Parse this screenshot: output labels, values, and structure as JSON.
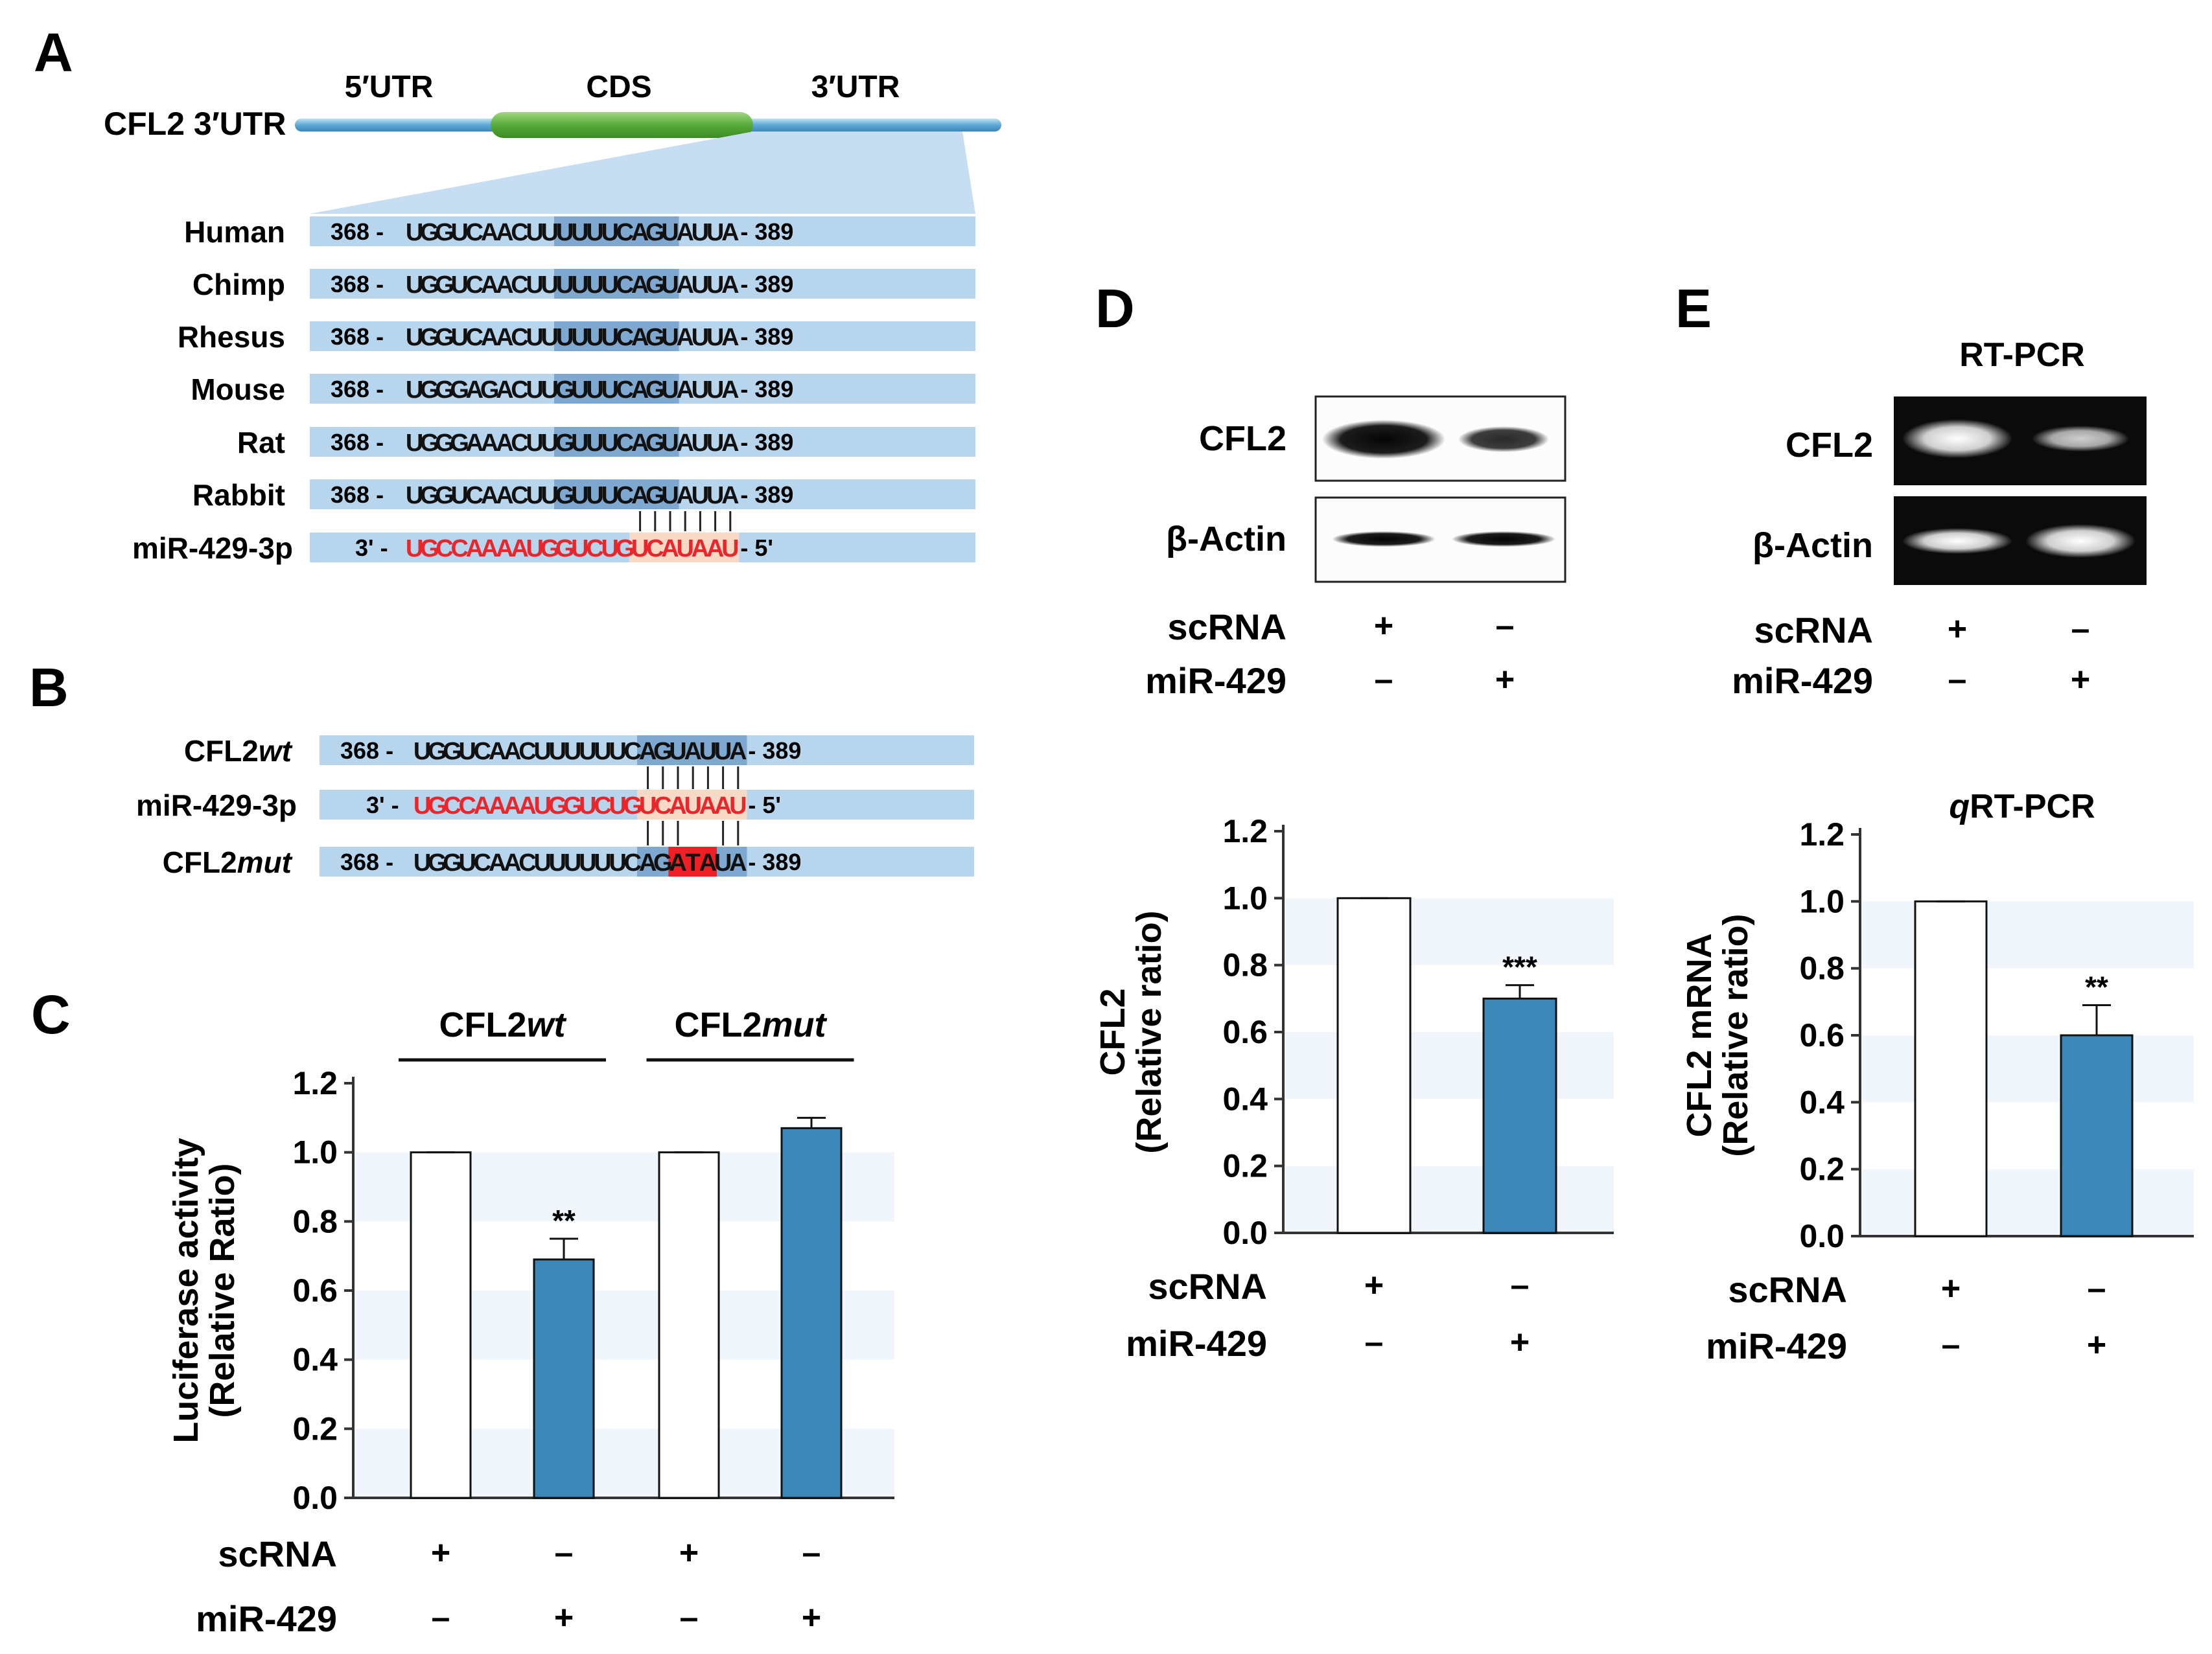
{
  "panels": {
    "A": {
      "letter": "A",
      "gene_label": "CFL2 3′UTR",
      "regions": [
        "5′UTR",
        "CDS",
        "3′UTR"
      ],
      "seed_cols": [
        10,
        17
      ],
      "alignments": [
        {
          "label": "Human",
          "start": "368",
          "seq": "UGGUCAACUUUUUUCAGUAUUA",
          "end": "389"
        },
        {
          "label": "Chimp",
          "start": "368",
          "seq": "UGGUCAACUUUUUUCAGUAUUA",
          "end": "389"
        },
        {
          "label": "Rhesus",
          "start": "368",
          "seq": "UGGUCAACUUUUUUCAGUAUUA",
          "end": "389"
        },
        {
          "label": "Mouse",
          "start": "368",
          "seq": "UGGGAGACUUGUUUCAGUAUUA",
          "end": "389"
        },
        {
          "label": "Rat",
          "start": "368",
          "seq": "UGGGAAACUUGUUUCAGUAUUA",
          "end": "389"
        },
        {
          "label": "Rabbit",
          "start": "368",
          "seq": "UGGUCAACUUGUUUCAGUAUUA",
          "end": "389"
        }
      ],
      "mirna": {
        "label": "miR-429-3p",
        "start": "3'",
        "seq": "UGCCAAAAUGGUCUGUCAUAAU",
        "end": "5'"
      },
      "pair_cols": [
        15,
        16,
        17,
        18,
        19,
        20,
        21
      ]
    },
    "B": {
      "letter": "B",
      "wt": {
        "label_main": "CFL2",
        "label_italic": "wt",
        "start": "368",
        "seq": "UGGUCAACUUUUUUCAGUAUUA",
        "end": "389"
      },
      "mirna": {
        "label": "miR-429-3p",
        "start": "3'",
        "seq": "UGCCAAAAUGGUCUGUCAUAAU",
        "end": "5'"
      },
      "mut": {
        "label_main": "CFL2",
        "label_italic": "mut",
        "start": "368",
        "seq": "UGGUCAACUUUUUUCAGATAUA",
        "end": "389"
      },
      "mut_cols": [
        17,
        18,
        19
      ],
      "pair_cols_top": [
        15,
        16,
        17,
        18,
        19,
        20,
        21
      ],
      "pair_cols_bottom": [
        15,
        16,
        17,
        20,
        21
      ]
    },
    "D": {
      "letter": "D",
      "blot_labels": [
        "CFL2",
        "β-Actin"
      ]
    },
    "E": {
      "letter": "E",
      "header": "RT-PCR",
      "gel_labels": [
        "CFL2",
        "β-Actin"
      ]
    }
  },
  "colors": {
    "seq_bar": "#b8d5ee",
    "seed_box": "#7ea8cf",
    "mirna_seed_box": "#f8d9c5",
    "mirna_text": "#e8262b",
    "mut_box": "#ee1f25",
    "bar_control": "#ffffff",
    "bar_mir": "#3b87b9",
    "cds_green": "#67b84a",
    "utr_line": "#6fb0d8",
    "band_stripe": "#f1f6fc"
  },
  "chart_data": [
    {
      "panel": "C",
      "letter": "C",
      "type": "bar",
      "ylabel": [
        "Luciferase activity",
        "(Relative Ratio)"
      ],
      "ylim": [
        0,
        1.2
      ],
      "yticks": [
        "0.0",
        "0.2",
        "0.4",
        "0.6",
        "0.8",
        "1.0",
        "1.2"
      ],
      "groups": [
        {
          "label_main": "CFL2",
          "label_italic": "wt"
        },
        {
          "label_main": "CFL2",
          "label_italic": "mut"
        }
      ],
      "values": [
        1.0,
        0.69,
        1.0,
        1.07
      ],
      "errors": [
        0.0,
        0.06,
        0.0,
        0.03
      ],
      "significance": [
        "",
        "**",
        "",
        ""
      ],
      "bar_colors": [
        "#ffffff",
        "#3b87b9",
        "#ffffff",
        "#3b87b9"
      ],
      "conditions": [
        {
          "name": "scRNA",
          "signs": [
            "+",
            "–",
            "+",
            "–"
          ]
        },
        {
          "name": "miR-429",
          "signs": [
            "–",
            "+",
            "–",
            "+"
          ]
        }
      ]
    },
    {
      "panel": "D",
      "letter": "D",
      "type": "bar",
      "ylabel": [
        "CFL2",
        "(Relative ratio)"
      ],
      "ylim": [
        0,
        1.2
      ],
      "yticks": [
        "0.0",
        "0.2",
        "0.4",
        "0.6",
        "0.8",
        "1.0",
        "1.2"
      ],
      "values": [
        1.0,
        0.7
      ],
      "errors": [
        0.0,
        0.04
      ],
      "significance": [
        "",
        "***"
      ],
      "bar_colors": [
        "#ffffff",
        "#3b87b9"
      ],
      "conditions": [
        {
          "name": "scRNA",
          "signs": [
            "+",
            "–"
          ]
        },
        {
          "name": "miR-429",
          "signs": [
            "–",
            "+"
          ]
        }
      ]
    },
    {
      "panel": "E",
      "letter": "E",
      "type": "bar",
      "title_italic": "q",
      "title_main": "RT-PCR",
      "ylabel": [
        "CFL2 mRNA",
        "(Relative ratio)"
      ],
      "ylim": [
        0,
        1.2
      ],
      "yticks": [
        "0.0",
        "0.2",
        "0.4",
        "0.6",
        "0.8",
        "1.0",
        "1.2"
      ],
      "values": [
        1.0,
        0.6
      ],
      "errors": [
        0.0,
        0.09
      ],
      "significance": [
        "",
        "**"
      ],
      "bar_colors": [
        "#ffffff",
        "#3b87b9"
      ],
      "conditions": [
        {
          "name": "scRNA",
          "signs": [
            "+",
            "–"
          ]
        },
        {
          "name": "miR-429",
          "signs": [
            "–",
            "+"
          ]
        }
      ]
    }
  ],
  "blot_conditions": {
    "D": [
      {
        "name": "scRNA",
        "signs": [
          "+",
          "–"
        ]
      },
      {
        "name": "miR-429",
        "signs": [
          "–",
          "+"
        ]
      }
    ],
    "E": [
      {
        "name": "scRNA",
        "signs": [
          "+",
          "–"
        ]
      },
      {
        "name": "miR-429",
        "signs": [
          "–",
          "+"
        ]
      }
    ]
  }
}
